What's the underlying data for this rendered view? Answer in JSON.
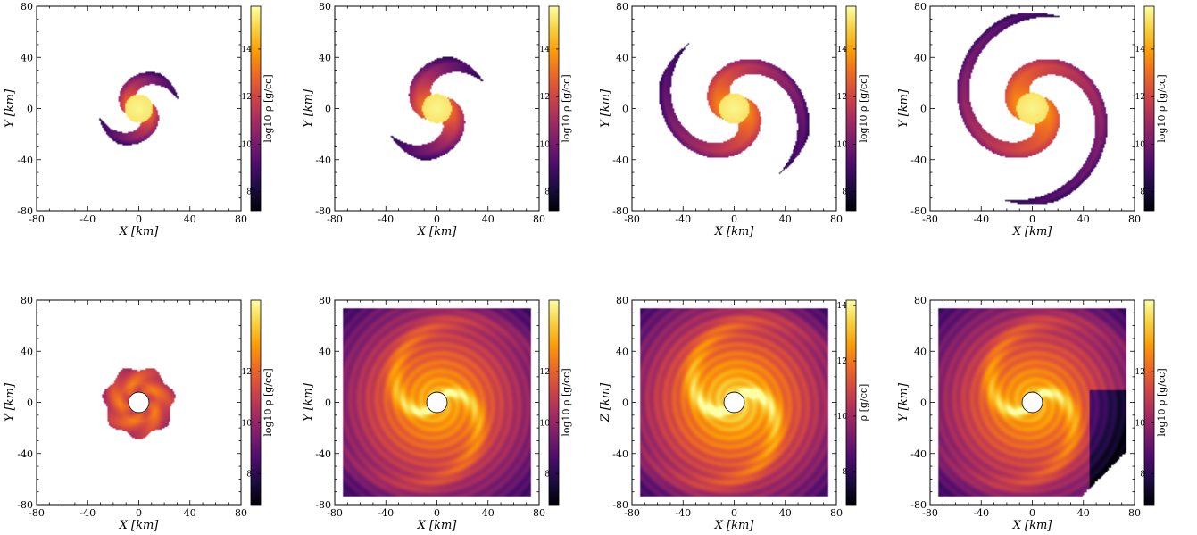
{
  "colormap_stops": [
    "#000004",
    "#1b0c41",
    "#4a0c6b",
    "#781c6d",
    "#a52c60",
    "#cf4446",
    "#ed6925",
    "#fb9b06",
    "#f7d13d",
    "#fcffa4"
  ],
  "chart_data": [
    {
      "type": "heatmap",
      "row": 0,
      "col": 0,
      "xlabel": "X [km]",
      "ylabel": "Y [km]",
      "xlim": [
        -80,
        80
      ],
      "ylim": [
        -80,
        80
      ],
      "xticks": [
        "-80",
        "-40",
        "0",
        "40",
        "80"
      ],
      "yticks": [
        "-80",
        "-40",
        "0",
        "40",
        "80"
      ],
      "colorbar": {
        "label": "log10 ρ [g/cc]",
        "range": [
          7.2,
          15.8
        ],
        "ticks": [
          "8",
          "10",
          "12",
          "14"
        ]
      },
      "feature": {
        "shape": "compact binary remnant, two short spiral arms",
        "hole_radius_km": 0,
        "extent_km": 32,
        "arm_turns": 0.5,
        "arm_width_km": 13
      }
    },
    {
      "type": "heatmap",
      "row": 0,
      "col": 1,
      "xlabel": "X [km]",
      "ylabel": "Y [km]",
      "xlim": [
        -80,
        80
      ],
      "ylim": [
        -80,
        80
      ],
      "xticks": [
        "-80",
        "-40",
        "0",
        "40",
        "80"
      ],
      "yticks": [
        "-80",
        "-40",
        "0",
        "40",
        "80"
      ],
      "colorbar": {
        "label": "log10 ρ [g/cc]",
        "range": [
          7.2,
          15.8
        ],
        "ticks": [
          "8",
          "10",
          "12",
          "14"
        ]
      },
      "feature": {
        "shape": "elongated two-arm tidal structure",
        "hole_radius_km": 0,
        "extent_km": 42,
        "arm_turns": 0.45,
        "arm_width_km": 16
      }
    },
    {
      "type": "heatmap",
      "row": 0,
      "col": 2,
      "xlabel": "X [km]",
      "ylabel": "Y [km]",
      "xlim": [
        -80,
        80
      ],
      "ylim": [
        -80,
        80
      ],
      "xticks": [
        "-80",
        "-40",
        "0",
        "40",
        "80"
      ],
      "yticks": [
        "-80",
        "-40",
        "0",
        "40",
        "80"
      ],
      "colorbar": {
        "label": "log10 ρ [g/cc]",
        "range": [
          7.2,
          15.8
        ],
        "ticks": [
          "8",
          "10",
          "12",
          "14"
        ]
      },
      "feature": {
        "shape": "two wide spiral arms",
        "hole_radius_km": 0,
        "extent_km": 62,
        "arm_turns": 0.7,
        "arm_width_km": 18
      }
    },
    {
      "type": "heatmap",
      "row": 0,
      "col": 3,
      "xlabel": "X [km]",
      "ylabel": "Y [km]",
      "xlim": [
        -80,
        80
      ],
      "ylim": [
        -80,
        80
      ],
      "xticks": [
        "-80",
        "-40",
        "0",
        "40",
        "80"
      ],
      "yticks": [
        "-80",
        "-40",
        "0",
        "40",
        "80"
      ],
      "colorbar": {
        "label": "log10 ρ [g/cc]",
        "range": [
          7.2,
          15.8
        ],
        "ticks": [
          "8",
          "10",
          "12",
          "14"
        ]
      },
      "feature": {
        "shape": "extended two-arm spiral",
        "hole_radius_km": 0,
        "extent_km": 75,
        "arm_turns": 0.85,
        "arm_width_km": 20
      }
    },
    {
      "type": "heatmap",
      "row": 1,
      "col": 0,
      "xlabel": "X [km]",
      "ylabel": "Y [km]",
      "xlim": [
        -80,
        80
      ],
      "ylim": [
        -80,
        80
      ],
      "xticks": [
        "-80",
        "-40",
        "0",
        "40",
        "80"
      ],
      "yticks": [
        "-80",
        "-40",
        "0",
        "40",
        "80"
      ],
      "colorbar": {
        "label": "log10 ρ [g/cc]",
        "range": [
          6.8,
          14.8
        ],
        "ticks": [
          "8",
          "10",
          "12"
        ]
      },
      "feature": {
        "shape": "compact torus around central hole",
        "hole_radius_km": 8,
        "extent_km": 27
      }
    },
    {
      "type": "heatmap",
      "row": 1,
      "col": 1,
      "xlabel": "X [km]",
      "ylabel": "Y [km]",
      "xlim": [
        -80,
        80
      ],
      "ylim": [
        -80,
        80
      ],
      "xticks": [
        "-80",
        "-40",
        "0",
        "40",
        "80"
      ],
      "yticks": [
        "-80",
        "-40",
        "0",
        "40",
        "80"
      ],
      "colorbar": {
        "label": "log10 ρ [g/cc]",
        "range": [
          6.8,
          14.8
        ],
        "ticks": [
          "8",
          "10",
          "12"
        ]
      },
      "feature": {
        "shape": "accretion disk filling box with spiral",
        "hole_radius_km": 8,
        "extent_km": 75
      }
    },
    {
      "type": "heatmap",
      "row": 1,
      "col": 2,
      "xlabel": "X [km]",
      "ylabel": "Z [km]",
      "xlim": [
        -80,
        80
      ],
      "ylim": [
        -80,
        80
      ],
      "xticks": [
        "-80",
        "-40",
        "0",
        "40",
        "80"
      ],
      "yticks": [
        "-80",
        "-40",
        "0",
        "40",
        "80"
      ],
      "colorbar": {
        "label": "ρ [g/cc]",
        "range": [
          6.8,
          14.2
        ],
        "ticks": [
          "8",
          "10",
          "12",
          "14"
        ]
      },
      "feature": {
        "shape": "accretion disk with bright spiral, full box",
        "hole_radius_km": 8,
        "extent_km": 75
      }
    },
    {
      "type": "heatmap",
      "row": 1,
      "col": 3,
      "xlabel": "X [km]",
      "ylabel": "Y [km]",
      "xlim": [
        -80,
        80
      ],
      "ylim": [
        -80,
        80
      ],
      "xticks": [
        "-80",
        "-40",
        "0",
        "40",
        "80"
      ],
      "yticks": [
        "-80",
        "-40",
        "0",
        "40",
        "80"
      ],
      "colorbar": {
        "label": "log10 ρ [g/cc]",
        "range": [
          6.8,
          14.8
        ],
        "ticks": [
          "8",
          "10",
          "12"
        ]
      },
      "feature": {
        "shape": "disk with large spiral arm, truncated bottom-right",
        "hole_radius_km": 8,
        "extent_km": 75
      }
    }
  ]
}
